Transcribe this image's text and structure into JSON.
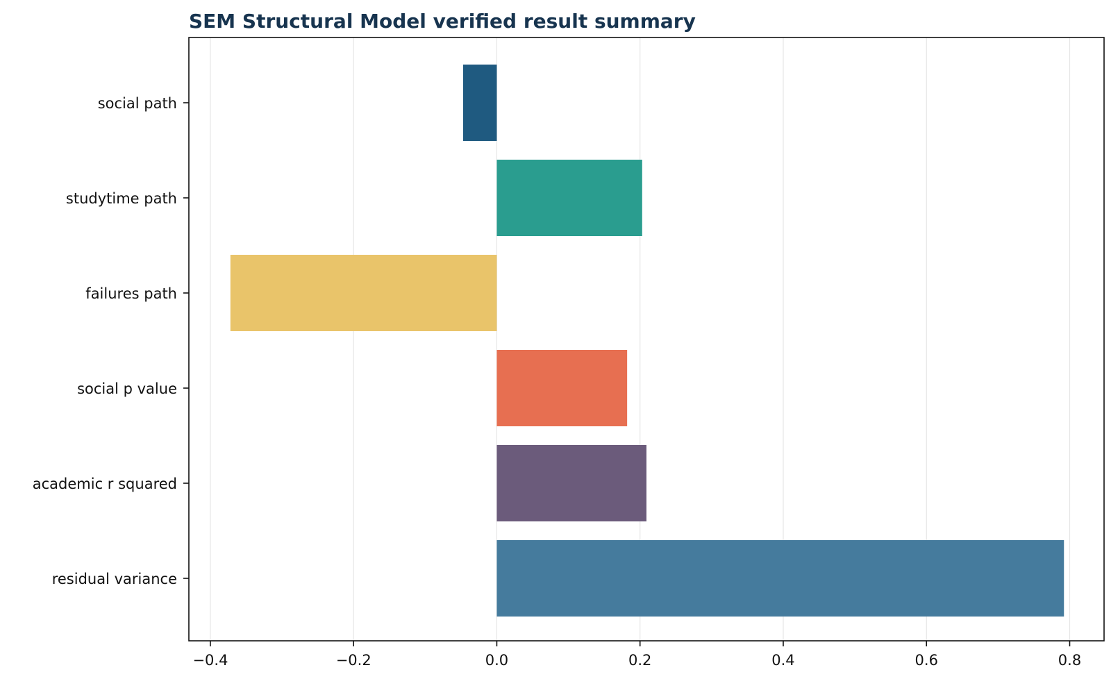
{
  "chart_data": {
    "type": "bar",
    "orientation": "horizontal",
    "title": "SEM Structural Model verified result summary",
    "xlabel": "",
    "ylabel": "",
    "categories": [
      "social path",
      "studytime path",
      "failures path",
      "social p value",
      "academic r squared",
      "residual variance"
    ],
    "values": [
      -0.047,
      0.203,
      -0.372,
      0.182,
      0.209,
      0.792
    ],
    "colors": [
      "#1f5a80",
      "#2a9d8f",
      "#e9c46a",
      "#e76f51",
      "#6b5b7b",
      "#457b9d"
    ],
    "xticks": [
      -0.4,
      -0.2,
      0.0,
      0.2,
      0.4,
      0.6,
      0.8
    ],
    "xtick_labels": [
      "−0.4",
      "−0.2",
      "0.0",
      "0.2",
      "0.4",
      "0.6",
      "0.8"
    ],
    "xlim": [
      -0.43,
      0.848
    ],
    "grid": "vertical",
    "legend": "none"
  }
}
